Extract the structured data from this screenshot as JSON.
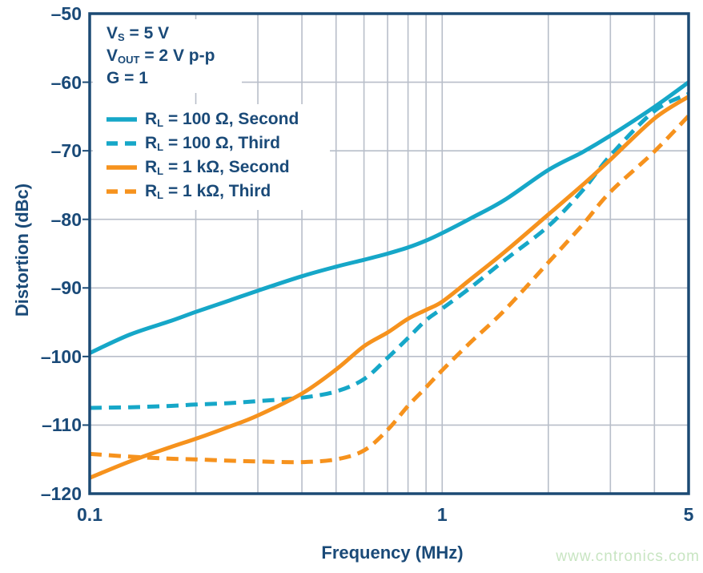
{
  "colors": {
    "navy_text": "#1a4a78",
    "frame": "#1c4a74",
    "grid_gray": "#b8bec9",
    "teal": "#16a7c8",
    "orange": "#f6921d",
    "watermark_green": "#c8e5c2",
    "background": "#ffffff"
  },
  "annotation": {
    "lines": [
      {
        "pre": "V",
        "sub": "S",
        "post": " = 5 V"
      },
      {
        "pre": "V",
        "sub": "OUT",
        "post": " = 2 V p-p"
      },
      {
        "pre": "G",
        "sub": "",
        "post": " = 1"
      }
    ]
  },
  "legend": {
    "items": [
      {
        "pre": "R",
        "sub": "L",
        "post": " = 100 Ω, Second",
        "color": "#16a7c8",
        "style": "solid"
      },
      {
        "pre": "R",
        "sub": "L",
        "post": " = 100 Ω, Third",
        "color": "#16a7c8",
        "style": "dashed"
      },
      {
        "pre": "R",
        "sub": "L",
        "post": " = 1 kΩ, Second",
        "color": "#f6921d",
        "style": "solid"
      },
      {
        "pre": "R",
        "sub": "L",
        "post": " = 1 kΩ, Third",
        "color": "#f6921d",
        "style": "dashed"
      }
    ]
  },
  "chart_data": {
    "type": "line",
    "title": "",
    "xlabel": "Frequency (MHz)",
    "ylabel": "Distortion (dBc)",
    "x_scale": "log",
    "xlim": [
      0.1,
      5
    ],
    "ylim": [
      -120,
      -50
    ],
    "grid": true,
    "legend_position": "top-left",
    "x_tick_labels": [
      {
        "value": 0.1,
        "label": "0.1"
      },
      {
        "value": 1,
        "label": "1"
      },
      {
        "value": 5,
        "label": "5"
      }
    ],
    "y_tick_labels": [
      {
        "value": -50,
        "label": "–50"
      },
      {
        "value": -60,
        "label": "–60"
      },
      {
        "value": -70,
        "label": "–70"
      },
      {
        "value": -80,
        "label": "–80"
      },
      {
        "value": -90,
        "label": "–90"
      },
      {
        "value": -100,
        "label": "–100"
      },
      {
        "value": -110,
        "label": "–110"
      },
      {
        "value": -120,
        "label": "–120"
      }
    ],
    "x_gridlines": [
      0.2,
      0.3,
      0.4,
      0.5,
      0.6,
      0.7,
      0.8,
      0.9,
      1,
      2,
      3,
      4
    ],
    "y_gridlines": [
      -60,
      -70,
      -80,
      -90,
      -100,
      -110
    ],
    "x": [
      0.1,
      0.13,
      0.17,
      0.2,
      0.25,
      0.3,
      0.4,
      0.5,
      0.6,
      0.7,
      0.8,
      0.9,
      1.0,
      1.2,
      1.5,
      2.0,
      2.5,
      3.0,
      4.0,
      5.0
    ],
    "series": [
      {
        "name": "RL = 100 Ω, Second",
        "color": "#16a7c8",
        "style": "solid",
        "values": [
          -99.5,
          -96.8,
          -94.8,
          -93.5,
          -91.8,
          -90.4,
          -88.3,
          -86.9,
          -85.9,
          -85.0,
          -84.1,
          -83.1,
          -82.0,
          -79.9,
          -77.2,
          -72.8,
          -70.2,
          -67.8,
          -63.6,
          -60.0
        ]
      },
      {
        "name": "RL = 100 Ω, Third",
        "color": "#16a7c8",
        "style": "dashed",
        "values": [
          -107.5,
          -107.4,
          -107.2,
          -107.0,
          -106.8,
          -106.5,
          -106.0,
          -105.1,
          -103.3,
          -100.2,
          -97.3,
          -94.7,
          -93.0,
          -90.0,
          -86.0,
          -81.0,
          -75.8,
          -70.7,
          -64.2,
          -61.7
        ]
      },
      {
        "name": "RL = 1 kΩ, Second",
        "color": "#f6921d",
        "style": "solid",
        "values": [
          -117.7,
          -115.3,
          -113.2,
          -112.0,
          -110.2,
          -108.6,
          -105.4,
          -101.9,
          -98.5,
          -96.5,
          -94.5,
          -93.2,
          -92.0,
          -88.8,
          -84.8,
          -79.3,
          -75.0,
          -71.3,
          -65.3,
          -62.1
        ]
      },
      {
        "name": "RL = 1 kΩ, Third",
        "color": "#f6921d",
        "style": "dashed",
        "values": [
          -114.2,
          -114.6,
          -114.9,
          -115.0,
          -115.2,
          -115.3,
          -115.4,
          -115.0,
          -113.7,
          -110.7,
          -107.2,
          -104.5,
          -102.0,
          -98.0,
          -93.3,
          -86.3,
          -80.8,
          -76.0,
          -70.1,
          -64.9
        ]
      }
    ]
  },
  "watermark": {
    "text": "www.cntronics.com"
  }
}
